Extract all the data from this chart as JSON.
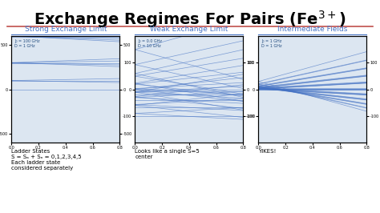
{
  "title": "Exchange Regimes For Pairs (Fe$^{3+}$)",
  "title_fontsize": 14,
  "background_color": "#ffffff",
  "red_line_color": "#c0504d",
  "subtitle_color": "#4472c4",
  "panel_titles": [
    "Strong Exchange Limit",
    "Weak Exchange Limit",
    "Intermediate Fields"
  ],
  "panel_labels": [
    "J₀ = 100 GHz\nD = 1 GHz",
    "J₀ = 0.0 GHz\nD = 10 GHz",
    "J₀ = 1 GHz\nD = 1 GHz"
  ],
  "bottom_texts": [
    "Ladder States\nS = Sₐ + Sₙ = 0,1,2,3,4,5\nEach ladder state\nconsidered separately",
    "Looks like a single S=5\ncenter",
    "YIKES!"
  ],
  "line_color": "#4472c4",
  "xlim": [
    0.0,
    0.8
  ],
  "ylim_strong": [
    -600,
    600
  ],
  "ylim_weak": [
    -200,
    200
  ],
  "ylim_inter": [
    -200,
    200
  ],
  "strong_yticks": [
    -500,
    0,
    500
  ],
  "weak_yticks": [
    -100,
    0,
    100
  ],
  "inter_yticks": [
    -100,
    0,
    100
  ],
  "ax_facecolor": "#dce6f1"
}
